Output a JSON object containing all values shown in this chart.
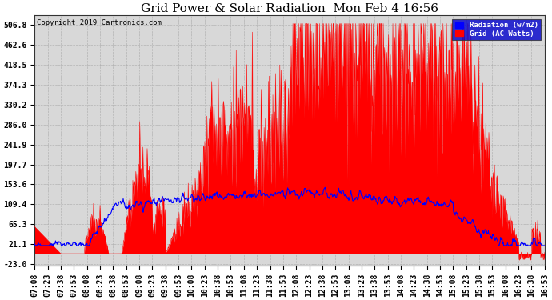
{
  "title": "Grid Power & Solar Radiation  Mon Feb 4 16:56",
  "copyright": "Copyright 2019 Cartronics.com",
  "legend_radiation": "Radiation (w/m2)",
  "legend_grid": "Grid (AC Watts)",
  "yticks": [
    506.8,
    462.6,
    418.5,
    374.3,
    330.2,
    286.0,
    241.9,
    197.7,
    153.6,
    109.4,
    65.3,
    21.1,
    -23.0
  ],
  "ymin": -23.0,
  "ymax": 528.0,
  "background_color": "#ffffff",
  "plot_bg_color": "#d8d8d8",
  "grid_color": "#aaaaaa",
  "red_color": "#ff0000",
  "blue_color": "#0000ff",
  "title_fontsize": 11,
  "tick_fontsize": 7,
  "legend_bg": "#0000cc"
}
